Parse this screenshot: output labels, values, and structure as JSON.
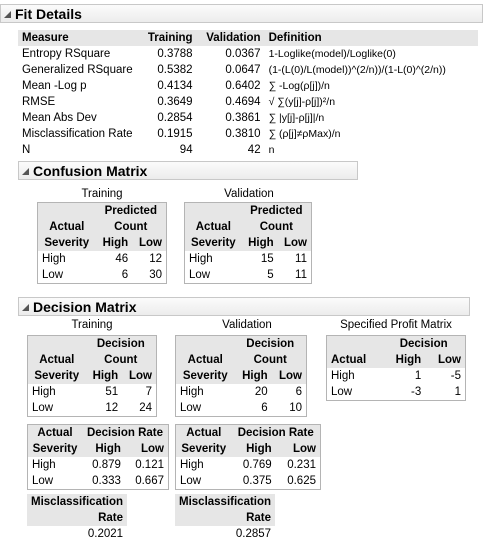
{
  "fit_details": {
    "title": "Fit Details",
    "columns": [
      "Measure",
      "Training",
      "Validation",
      "Definition"
    ],
    "rows": [
      [
        "Entropy RSquare",
        "0.3788",
        "0.0367",
        "1-Loglike(model)/Loglike(0)"
      ],
      [
        "Generalized RSquare",
        "0.5382",
        "0.0647",
        "(1-(L(0)/L(model))^(2/n))/(1-L(0)^(2/n))"
      ],
      [
        "Mean -Log p",
        "0.4134",
        "0.6402",
        "∑ -Log(ρ[j])/n"
      ],
      [
        "RMSE",
        "0.3649",
        "0.4694",
        "√ ∑(y[j]-ρ[j])²/n"
      ],
      [
        "Mean Abs Dev",
        "0.2854",
        "0.3861",
        "∑ |y[j]-ρ[j]|/n"
      ],
      [
        "Misclassification Rate",
        "0.1915",
        "0.3810",
        "∑ (ρ[j]≠ρMax)/n"
      ],
      [
        "N",
        "94",
        "42",
        "n"
      ]
    ]
  },
  "confusion_matrix": {
    "title": "Confusion Matrix",
    "training": {
      "label": "Training",
      "header": [
        "Predicted",
        "Actual",
        "Count",
        "Severity",
        "High",
        "Low"
      ],
      "rows": [
        [
          "High",
          "46",
          "12"
        ],
        [
          "Low",
          "6",
          "30"
        ]
      ]
    },
    "validation": {
      "label": "Validation",
      "header": [
        "Predicted",
        "Actual",
        "Count",
        "Severity",
        "High",
        "Low"
      ],
      "rows": [
        [
          "High",
          "15",
          "11"
        ],
        [
          "Low",
          "5",
          "11"
        ]
      ]
    }
  },
  "decision_matrix": {
    "title": "Decision Matrix",
    "training": {
      "label": "Training",
      "count_table": {
        "header": [
          "Decision",
          "Actual",
          "Count",
          "Severity",
          "High",
          "Low"
        ],
        "rows": [
          [
            "High",
            "51",
            "7"
          ],
          [
            "Low",
            "12",
            "24"
          ]
        ]
      },
      "rate_table": {
        "header": [
          "Actual",
          "Decision Rate",
          "Severity",
          "High",
          "Low"
        ],
        "rows": [
          [
            "High",
            "0.879",
            "0.121"
          ],
          [
            "Low",
            "0.333",
            "0.667"
          ]
        ]
      },
      "misclassification": {
        "label": "Misclassification Rate",
        "value": "0.2021"
      }
    },
    "validation": {
      "label": "Validation",
      "count_table": {
        "header": [
          "Decision",
          "Actual",
          "Count",
          "Severity",
          "High",
          "Low"
        ],
        "rows": [
          [
            "High",
            "20",
            "6"
          ],
          [
            "Low",
            "6",
            "10"
          ]
        ]
      },
      "rate_table": {
        "header": [
          "Actual",
          "Decision Rate",
          "Severity",
          "High",
          "Low"
        ],
        "rows": [
          [
            "High",
            "0.769",
            "0.231"
          ],
          [
            "Low",
            "0.375",
            "0.625"
          ]
        ]
      },
      "misclassification": {
        "label": "Misclassification Rate",
        "value": "0.2857"
      }
    },
    "profit_matrix": {
      "label": "Specified Profit Matrix",
      "header": [
        "Decision",
        "Actual",
        "High",
        "Low"
      ],
      "rows": [
        [
          "High",
          "1",
          "-5"
        ],
        [
          "Low",
          "-3",
          "1"
        ]
      ]
    }
  }
}
